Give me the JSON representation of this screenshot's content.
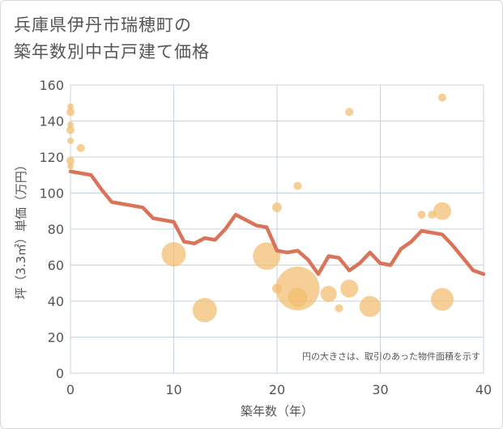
{
  "title": {
    "line1": "兵庫県伊丹市瑞穂町の",
    "line2": "築年数別中古戸建て価格"
  },
  "chart_data": {
    "type": "scatter",
    "xlabel": "築年数（年）",
    "ylabel": "坪（3.3㎡）単価（万円）",
    "xlim": [
      0,
      40
    ],
    "ylim": [
      0,
      160
    ],
    "xticks": [
      0,
      10,
      20,
      30,
      40
    ],
    "yticks": [
      0,
      20,
      40,
      60,
      80,
      100,
      120,
      140,
      160
    ],
    "xtick_labels": [
      "0",
      "10",
      "20",
      "30",
      "40"
    ],
    "ytick_labels": [
      "0",
      "20",
      "40",
      "60",
      "80",
      "100",
      "120",
      "140",
      "160"
    ],
    "grid": true,
    "note": "円の大きさは、取引のあった物件面積を示す",
    "colors": {
      "line": "#d9735a",
      "bubble": "#f3bd6d",
      "grid": "#c7d3e0",
      "text": "#555555"
    },
    "trend_line": {
      "x": [
        0,
        1,
        2,
        3,
        4,
        5,
        6,
        7,
        8,
        9,
        10,
        11,
        12,
        13,
        14,
        15,
        16,
        17,
        18,
        19,
        20,
        21,
        22,
        23,
        24,
        25,
        26,
        27,
        28,
        29,
        30,
        31,
        32,
        33,
        34,
        35,
        36,
        37,
        38,
        39,
        40
      ],
      "y": [
        112,
        111,
        110,
        102,
        95,
        94,
        93,
        92,
        86,
        85,
        84,
        73,
        72,
        75,
        74,
        80,
        88,
        85,
        82,
        81,
        68,
        67,
        68,
        63,
        55,
        65,
        64,
        57,
        61,
        67,
        61,
        60,
        69,
        73,
        79,
        78,
        77,
        71,
        64,
        57,
        55
      ]
    },
    "bubbles": [
      {
        "x": 0,
        "y": 148,
        "size": 4
      },
      {
        "x": 0,
        "y": 145,
        "size": 5
      },
      {
        "x": 0,
        "y": 138,
        "size": 4
      },
      {
        "x": 0,
        "y": 135,
        "size": 5
      },
      {
        "x": 0,
        "y": 129,
        "size": 4
      },
      {
        "x": 0,
        "y": 118,
        "size": 5
      },
      {
        "x": 0,
        "y": 115,
        "size": 4
      },
      {
        "x": 1,
        "y": 125,
        "size": 5
      },
      {
        "x": 10,
        "y": 66,
        "size": 15
      },
      {
        "x": 13,
        "y": 35,
        "size": 15
      },
      {
        "x": 19,
        "y": 65,
        "size": 17
      },
      {
        "x": 20,
        "y": 92,
        "size": 6
      },
      {
        "x": 20,
        "y": 47,
        "size": 6
      },
      {
        "x": 22,
        "y": 104,
        "size": 5
      },
      {
        "x": 22,
        "y": 47,
        "size": 27
      },
      {
        "x": 22,
        "y": 42,
        "size": 12
      },
      {
        "x": 25,
        "y": 44,
        "size": 10
      },
      {
        "x": 26,
        "y": 36,
        "size": 5
      },
      {
        "x": 27,
        "y": 145,
        "size": 5
      },
      {
        "x": 27,
        "y": 47,
        "size": 11
      },
      {
        "x": 29,
        "y": 37,
        "size": 13
      },
      {
        "x": 34,
        "y": 88,
        "size": 5
      },
      {
        "x": 35,
        "y": 88,
        "size": 5
      },
      {
        "x": 36,
        "y": 153,
        "size": 5
      },
      {
        "x": 36,
        "y": 90,
        "size": 11
      },
      {
        "x": 36,
        "y": 41,
        "size": 14
      }
    ]
  }
}
